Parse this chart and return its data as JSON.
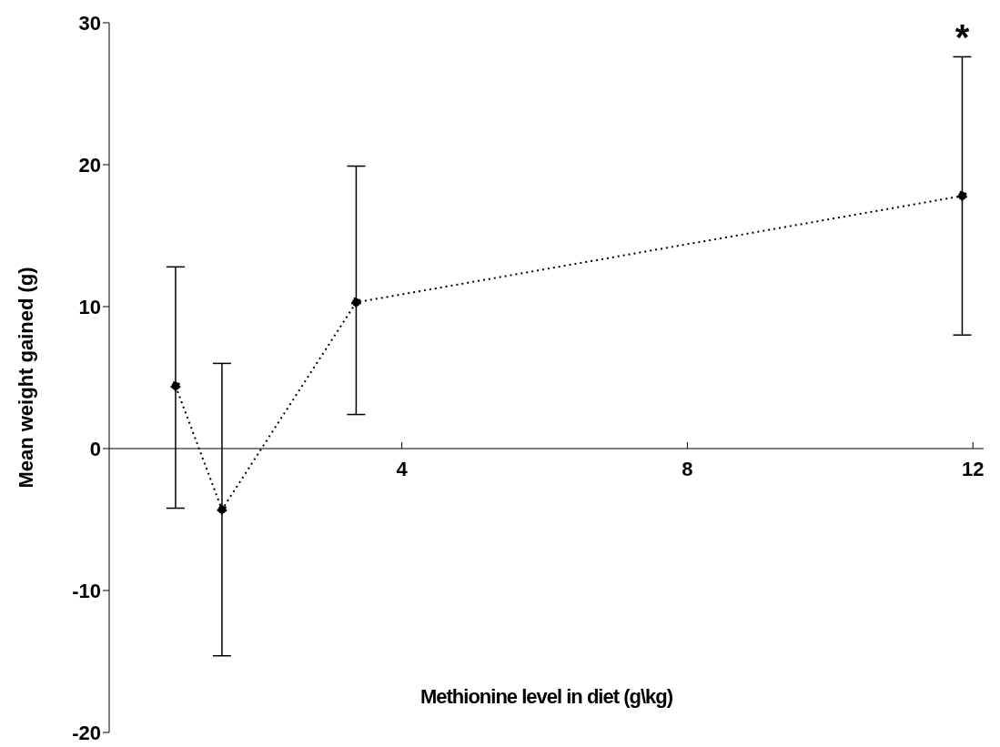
{
  "chart_data": {
    "type": "line",
    "xlabel": "Methionine level in diet (g\\kg)",
    "ylabel": "Mean weight gained (g)",
    "x": [
      0.83,
      1.48,
      3.36,
      11.85
    ],
    "series": [
      {
        "color": "#000000",
        "values": [
          4.4,
          -4.3,
          10.3,
          17.8
        ],
        "errors": [
          [
            -4.2,
            12.8
          ],
          [
            -14.6,
            6.0
          ],
          [
            2.4,
            19.9
          ],
          [
            8.0,
            27.6
          ]
        ]
      }
    ],
    "xlim": [
      -0.1,
      12.15
    ],
    "xticks": [
      4,
      8,
      12
    ],
    "ylim": [
      -20,
      30
    ],
    "yticks": [
      -20,
      -10,
      0,
      10,
      20,
      30
    ],
    "grid": false,
    "marker": "circle",
    "line_style": "dotted",
    "annotations": [
      "*"
    ]
  }
}
